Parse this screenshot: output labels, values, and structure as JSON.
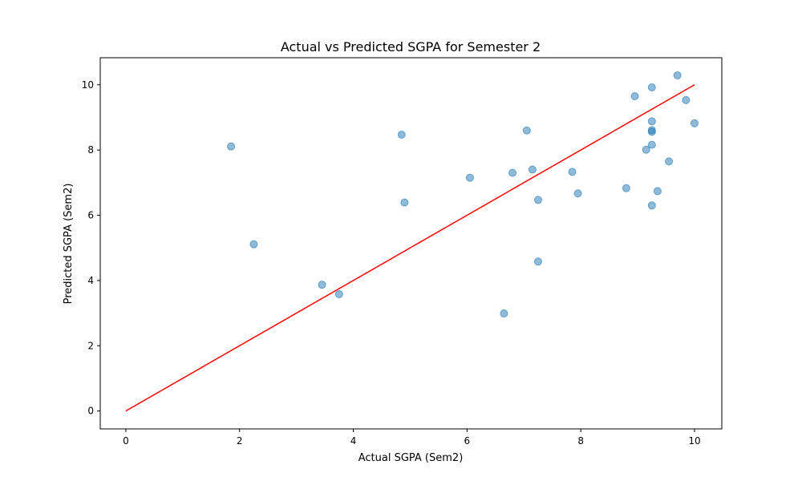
{
  "chart_data": {
    "type": "scatter",
    "title": "Actual vs Predicted SGPA for Semester 2",
    "xlabel": "Actual SGPA (Sem2)",
    "ylabel": "Predicted SGPA (Sem2)",
    "xlim": [
      -0.45,
      10.48
    ],
    "ylim": [
      -0.55,
      10.83
    ],
    "xticks": [
      0,
      2,
      4,
      6,
      8,
      10
    ],
    "yticks": [
      0,
      2,
      4,
      6,
      8,
      10
    ],
    "grid": false,
    "point_color": "#1f77b4",
    "line_color": "#ff0000",
    "series": [
      {
        "type": "scatter",
        "points": [
          [
            1.85,
            8.11
          ],
          [
            2.25,
            5.11
          ],
          [
            3.45,
            3.87
          ],
          [
            3.75,
            3.58
          ],
          [
            4.85,
            8.47
          ],
          [
            4.9,
            6.39
          ],
          [
            6.05,
            7.15
          ],
          [
            6.65,
            2.99
          ],
          [
            6.8,
            7.3
          ],
          [
            7.05,
            8.6
          ],
          [
            7.15,
            7.4
          ],
          [
            7.25,
            6.47
          ],
          [
            7.25,
            4.58
          ],
          [
            7.85,
            7.33
          ],
          [
            7.95,
            6.67
          ],
          [
            8.8,
            6.83
          ],
          [
            8.95,
            9.65
          ],
          [
            9.15,
            8.01
          ],
          [
            9.25,
            9.92
          ],
          [
            9.25,
            8.88
          ],
          [
            9.25,
            8.61
          ],
          [
            9.25,
            8.56
          ],
          [
            9.25,
            8.16
          ],
          [
            9.25,
            6.3
          ],
          [
            9.35,
            6.74
          ],
          [
            9.55,
            7.65
          ],
          [
            9.7,
            10.29
          ],
          [
            9.85,
            9.53
          ],
          [
            10.0,
            8.82
          ]
        ]
      },
      {
        "type": "line",
        "points": [
          [
            0,
            0
          ],
          [
            10,
            10
          ]
        ]
      }
    ]
  }
}
